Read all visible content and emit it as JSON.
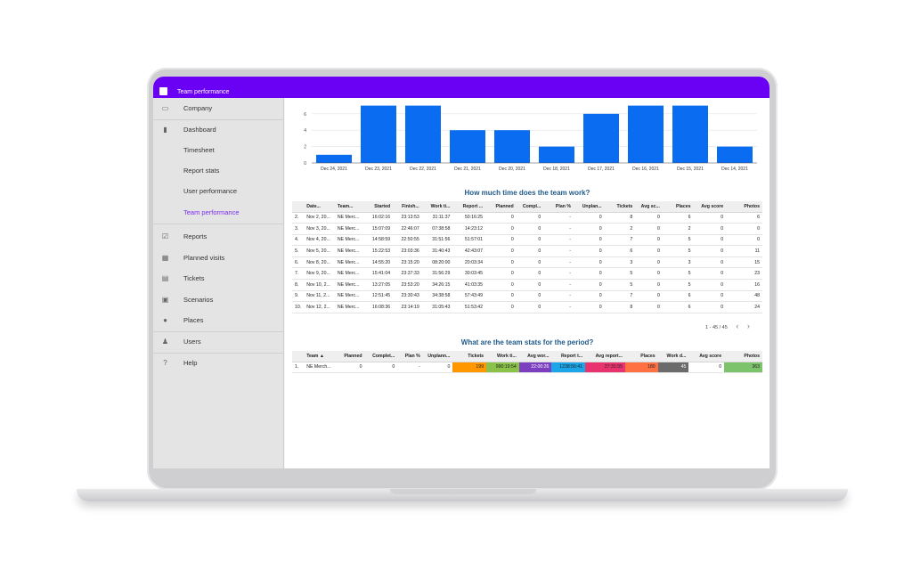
{
  "window": {
    "title": "Team performance"
  },
  "sidebar": {
    "items": [
      {
        "label": "Company",
        "icon": "card-icon"
      },
      {
        "label": "Dashboard",
        "icon": "bar-chart-icon"
      },
      {
        "label": "Timesheet",
        "icon": ""
      },
      {
        "label": "Report stats",
        "icon": ""
      },
      {
        "label": "User performance",
        "icon": ""
      },
      {
        "label": "Team performance",
        "icon": "",
        "active": true
      },
      {
        "label": "Reports",
        "icon": "clipboard-check-icon"
      },
      {
        "label": "Planned visits",
        "icon": "grid-icon"
      },
      {
        "label": "Tickets",
        "icon": "ticket-icon"
      },
      {
        "label": "Scenarios",
        "icon": "document-icon"
      },
      {
        "label": "Places",
        "icon": "location-pin-icon"
      },
      {
        "label": "Users",
        "icon": "people-icon"
      },
      {
        "label": "Help",
        "icon": "help-icon"
      }
    ]
  },
  "chart_data": {
    "type": "bar",
    "categories": [
      "Dec 24, 2021",
      "Dec 23, 2021",
      "Dec 22, 2021",
      "Dec 21, 2021",
      "Dec 20, 2021",
      "Dec 18, 2021",
      "Dec 17, 2021",
      "Dec 16, 2021",
      "Dec 15, 2021",
      "Dec 14, 2021"
    ],
    "values": [
      1,
      7,
      7,
      4,
      4,
      2,
      6,
      7,
      7,
      2
    ],
    "yticks": [
      0,
      2,
      4,
      6
    ],
    "ylim": [
      0,
      7.5
    ],
    "grid": true,
    "color": "#0a6cf0"
  },
  "section1": {
    "title": "How much time does the team work?"
  },
  "time_table": {
    "headers": [
      "Date...",
      "Team...",
      "Started",
      "Finish...",
      "Work ti...",
      "Report ...",
      "Planned",
      "Compl...",
      "Plan %",
      "Unplan...",
      "Tickets",
      "Avg sc...",
      "Places",
      "Avg score",
      "Photos"
    ],
    "rows": [
      [
        "2.",
        "Nov 2, 20...",
        "NE Merc...",
        "16:02:16",
        "23:13:53",
        "31:11:37",
        "50:16:25",
        "0",
        "0",
        "-",
        "0",
        "8",
        "0",
        "6",
        "0",
        "6"
      ],
      [
        "3.",
        "Nov 3, 20...",
        "NE Merc...",
        "15:07:09",
        "22:46:07",
        "07:38:58",
        "14:23:12",
        "0",
        "0",
        "-",
        "0",
        "2",
        "0",
        "2",
        "0",
        "0"
      ],
      [
        "4.",
        "Nov 4, 20...",
        "NE Merc...",
        "14:58:59",
        "22:50:55",
        "31:51:56",
        "51:57:01",
        "0",
        "0",
        "-",
        "0",
        "7",
        "0",
        "5",
        "0",
        "0"
      ],
      [
        "5.",
        "Nov 5, 20...",
        "NE Merc...",
        "15:22:53",
        "23:03:36",
        "31:40:43",
        "42:43:07",
        "0",
        "0",
        "-",
        "0",
        "6",
        "0",
        "5",
        "0",
        "11"
      ],
      [
        "6.",
        "Nov 8, 20...",
        "NE Merc...",
        "14:55:20",
        "23:15:20",
        "08:20:00",
        "20:03:34",
        "0",
        "0",
        "-",
        "0",
        "3",
        "0",
        "3",
        "0",
        "15"
      ],
      [
        "7.",
        "Nov 9, 20...",
        "NE Merc...",
        "15:41:04",
        "23:37:33",
        "31:56:29",
        "30:03:45",
        "0",
        "0",
        "-",
        "0",
        "5",
        "0",
        "5",
        "0",
        "23"
      ],
      [
        "8.",
        "Nov 10, 2...",
        "NE Merc...",
        "13:27:05",
        "23:53:20",
        "34:26:15",
        "41:03:35",
        "0",
        "0",
        "-",
        "0",
        "5",
        "0",
        "5",
        "0",
        "16"
      ],
      [
        "9.",
        "Nov 11, 2...",
        "NE Merc...",
        "12:51:45",
        "23:30:43",
        "34:38:58",
        "57:43:49",
        "0",
        "0",
        "-",
        "0",
        "7",
        "0",
        "6",
        "0",
        "48"
      ],
      [
        "10.",
        "Nov 12, 2...",
        "NE Merc...",
        "16:08:36",
        "23:14:19",
        "31:05:43",
        "51:53:42",
        "0",
        "0",
        "-",
        "0",
        "8",
        "0",
        "6",
        "0",
        "24"
      ]
    ],
    "pager": "1 - 45 / 45"
  },
  "section2": {
    "title": "What are the team stats for the period?"
  },
  "stats_table": {
    "headers": [
      "Team ▲",
      "Planned",
      "Complet...",
      "Plan %",
      "Unplann...",
      "Tickets",
      "Work ti...",
      "Avg wor...",
      "Report t...",
      "Avg report...",
      "Places",
      "Work d...",
      "Avg score",
      "Photos"
    ],
    "row": [
      "1.",
      "NE Merch...",
      "0",
      "0",
      "-",
      "0",
      "199",
      "990:19:54",
      "22:00:26",
      "1238:56:41",
      "27:31:55",
      "180",
      "45",
      "0",
      "363"
    ],
    "cell_colors": [
      "",
      "",
      "",
      "",
      "",
      "",
      "#ff9800",
      "#8bc34a",
      "#7b3fbf",
      "#1aa6e8",
      "#e8336f",
      "#ff7043",
      "#6b6b6b",
      "",
      "#7cc36b"
    ]
  }
}
